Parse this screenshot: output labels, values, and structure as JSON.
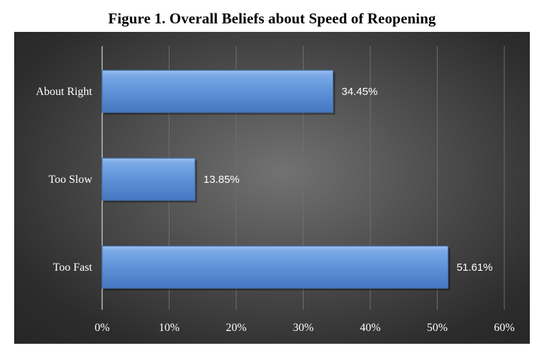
{
  "figure": {
    "title": "Figure 1.  Overall Beliefs about Speed of Reopening"
  },
  "chart_data": {
    "type": "bar",
    "orientation": "horizontal",
    "title": "Figure 1.  Overall Beliefs about Speed of Reopening",
    "xlabel": "",
    "ylabel": "",
    "categories": [
      "About Right",
      "Too Slow",
      "Too Fast"
    ],
    "values": [
      34.45,
      13.85,
      51.61
    ],
    "data_labels": [
      "34.45%",
      "13.85%",
      "51.61%"
    ],
    "xlim": [
      0,
      60
    ],
    "x_ticks": [
      0,
      10,
      20,
      30,
      40,
      50,
      60
    ],
    "x_tick_labels": [
      "0%",
      "10%",
      "20%",
      "30%",
      "40%",
      "50%",
      "60%"
    ],
    "grid": "vertical",
    "legend": "none",
    "colors": {
      "bar_fill": "#5b8fd6",
      "bar_edge": "#3f6eb0",
      "background": "#4a4a4a",
      "text": "#ffffff",
      "gridline": "#6e6e6e"
    }
  }
}
